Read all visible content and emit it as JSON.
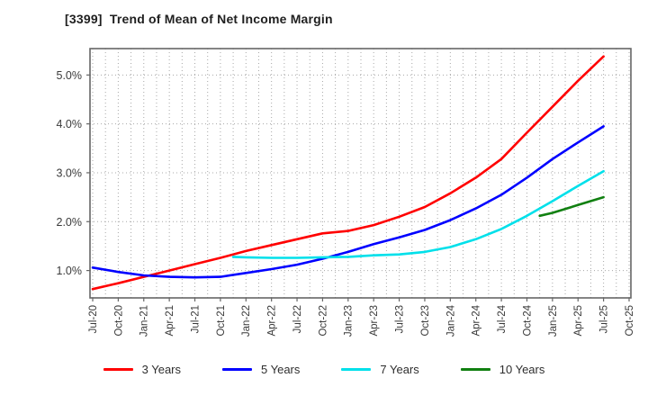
{
  "title": "[3399]  Trend of Mean of Net Income Margin",
  "chart_data": {
    "type": "line",
    "title": "[3399]  Trend of Mean of Net Income Margin",
    "xlabel": "",
    "ylabel": "",
    "categories": [
      "Jul-20",
      "Oct-20",
      "Jan-21",
      "Apr-21",
      "Jul-21",
      "Oct-21",
      "Jan-22",
      "Apr-22",
      "Jul-22",
      "Oct-22",
      "Jan-23",
      "Apr-23",
      "Jul-23",
      "Oct-23",
      "Jan-24",
      "Apr-24",
      "Jul-24",
      "Oct-24",
      "Jan-25",
      "Apr-25",
      "Jul-25",
      "Oct-25"
    ],
    "y_ticks": [
      {
        "value": 1,
        "label": "1.0%"
      },
      {
        "value": 2,
        "label": "2.0%"
      },
      {
        "value": 3,
        "label": "3.0%"
      },
      {
        "value": 4,
        "label": "4.0%"
      },
      {
        "value": 5,
        "label": "5.0%"
      }
    ],
    "ylim": [
      0.44,
      5.54
    ],
    "grid": {
      "horizontal": "dotted gray at each 1%",
      "vertical": "dotted gray at quarter and half-quarter positions"
    },
    "legend_position": "bottom-center",
    "series": [
      {
        "name": "3 Years",
        "color": "#ff0000",
        "points": [
          [
            0,
            0.62
          ],
          [
            1,
            0.74
          ],
          [
            2,
            0.87
          ],
          [
            3,
            1.0
          ],
          [
            4,
            1.13
          ],
          [
            5,
            1.26
          ],
          [
            6,
            1.4
          ],
          [
            7,
            1.52
          ],
          [
            8,
            1.64
          ],
          [
            9,
            1.76
          ],
          [
            10,
            1.81
          ],
          [
            11,
            1.93
          ],
          [
            12,
            2.1
          ],
          [
            13,
            2.3
          ],
          [
            14,
            2.58
          ],
          [
            15,
            2.9
          ],
          [
            16,
            3.28
          ],
          [
            17,
            3.82
          ],
          [
            18,
            4.35
          ],
          [
            19,
            4.88
          ],
          [
            20,
            5.38
          ]
        ]
      },
      {
        "name": "5 Years",
        "color": "#0000ff",
        "points": [
          [
            0,
            1.06
          ],
          [
            1,
            0.97
          ],
          [
            2,
            0.9
          ],
          [
            3,
            0.87
          ],
          [
            4,
            0.86
          ],
          [
            5,
            0.87
          ],
          [
            6,
            0.95
          ],
          [
            7,
            1.03
          ],
          [
            8,
            1.12
          ],
          [
            9,
            1.24
          ],
          [
            10,
            1.38
          ],
          [
            11,
            1.54
          ],
          [
            12,
            1.68
          ],
          [
            13,
            1.83
          ],
          [
            14,
            2.03
          ],
          [
            15,
            2.27
          ],
          [
            16,
            2.55
          ],
          [
            17,
            2.9
          ],
          [
            18,
            3.28
          ],
          [
            19,
            3.62
          ],
          [
            20,
            3.95
          ]
        ]
      },
      {
        "name": "7 Years",
        "color": "#00e0ea",
        "points": [
          [
            5.5,
            1.28
          ],
          [
            6,
            1.27
          ],
          [
            7,
            1.26
          ],
          [
            8,
            1.26
          ],
          [
            9,
            1.27
          ],
          [
            10,
            1.28
          ],
          [
            11,
            1.31
          ],
          [
            12,
            1.33
          ],
          [
            13,
            1.38
          ],
          [
            14,
            1.48
          ],
          [
            15,
            1.64
          ],
          [
            16,
            1.85
          ],
          [
            17,
            2.12
          ],
          [
            18,
            2.42
          ],
          [
            19,
            2.73
          ],
          [
            20,
            3.03
          ]
        ]
      },
      {
        "name": "10 Years",
        "color": "#118011",
        "points": [
          [
            17.5,
            2.12
          ],
          [
            18,
            2.18
          ],
          [
            19,
            2.34
          ],
          [
            20,
            2.5
          ]
        ]
      }
    ]
  },
  "colors": {
    "frame": "#666666",
    "gridline": "#a8a8a8",
    "tick_text": "#3a3a3a",
    "title_text": "#1f1f1f"
  }
}
